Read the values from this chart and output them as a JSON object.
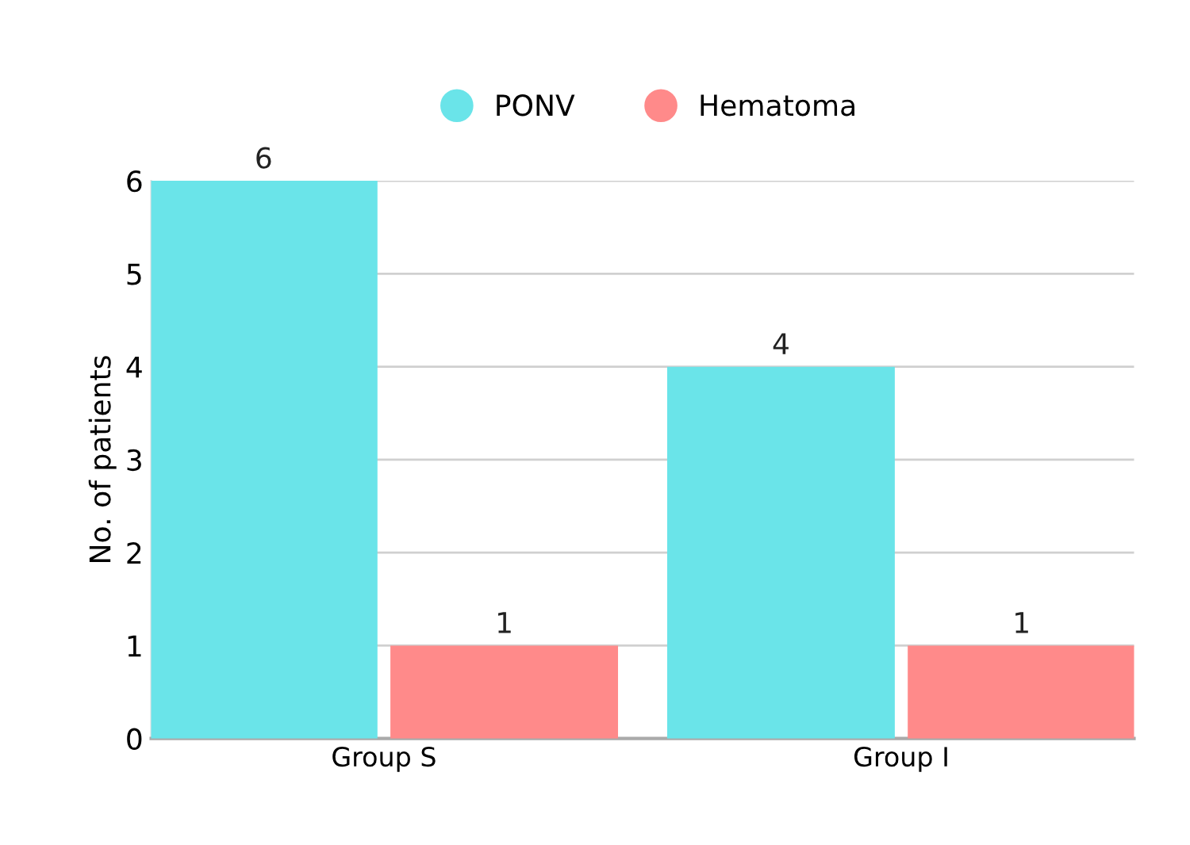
{
  "chart_data": {
    "type": "bar",
    "ylabel": "No. of patients",
    "categories": [
      "Group S",
      "Group I"
    ],
    "series": [
      {
        "name": "PONV",
        "color": "#6ae4e9",
        "values": [
          6,
          4
        ]
      },
      {
        "name": "Hematoma",
        "color": "#ff8a8a",
        "values": [
          1,
          1
        ]
      }
    ],
    "ylim": [
      0,
      6
    ],
    "yticks": [
      0,
      1,
      2,
      3,
      4,
      5,
      6
    ],
    "grid": "y",
    "legend": "top",
    "data_labels": true
  }
}
